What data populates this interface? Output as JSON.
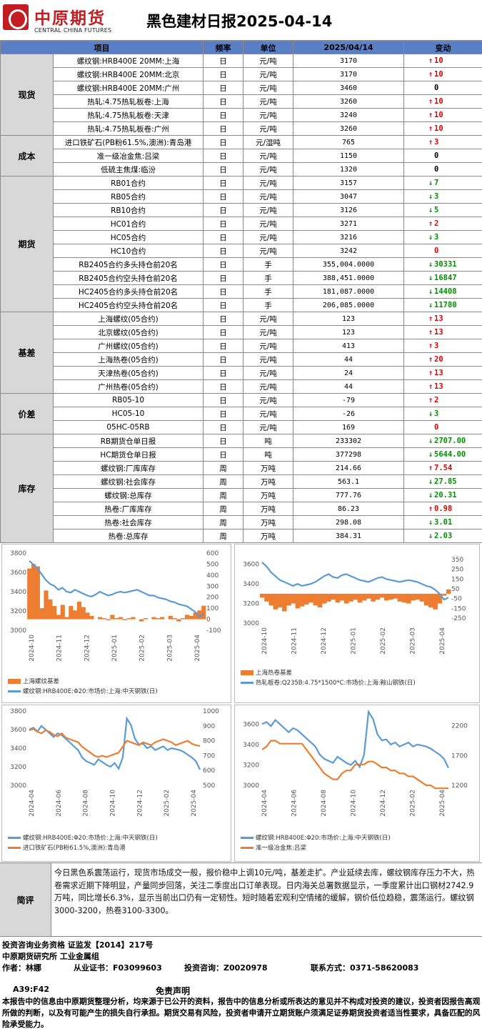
{
  "header": {
    "logo_cn": "中原期货",
    "logo_en": "CENTRAL CHINA FUTURES",
    "title": "黑色建材日报2025-04-14"
  },
  "table": {
    "columns": [
      "项目",
      "频率",
      "单位",
      "2025/04/14",
      "变动"
    ],
    "groups": [
      {
        "category": "现货",
        "rows": [
          {
            "item": "螺纹钢:HRB400E 20MM:上海",
            "freq": "日",
            "unit": "元/吨",
            "value": "3170",
            "dir": "up",
            "change": "10"
          },
          {
            "item": "螺纹钢:HRB400E 20MM:北京",
            "freq": "日",
            "unit": "元/吨",
            "value": "3170",
            "dir": "up",
            "change": "10"
          },
          {
            "item": "螺纹钢:HRB400E 20MM:广州",
            "freq": "日",
            "unit": "元/吨",
            "value": "3460",
            "dir": "flat",
            "change": "0"
          },
          {
            "item": "热轧:4.75热轧板卷:上海",
            "freq": "日",
            "unit": "元/吨",
            "value": "3260",
            "dir": "up",
            "change": "10"
          },
          {
            "item": "热轧:4.75热轧板卷:天津",
            "freq": "日",
            "unit": "元/吨",
            "value": "3240",
            "dir": "up",
            "change": "10"
          },
          {
            "item": "热轧:4.75热轧板卷:广州",
            "freq": "日",
            "unit": "元/吨",
            "value": "3260",
            "dir": "up",
            "change": "10"
          }
        ]
      },
      {
        "category": "成本",
        "rows": [
          {
            "item": "进口铁矿石(PB粉61.5%,澳洲):青岛港",
            "freq": "日",
            "unit": "元/湿吨",
            "value": "765",
            "dir": "up",
            "change": "3"
          },
          {
            "item": "准一级冶金焦:吕梁",
            "freq": "日",
            "unit": "元/吨",
            "value": "1150",
            "dir": "flat",
            "change": "0"
          },
          {
            "item": "低硫主焦煤:临汾",
            "freq": "日",
            "unit": "元/吨",
            "value": "1320",
            "dir": "flat",
            "change": "0"
          }
        ]
      },
      {
        "category": "期货",
        "rows": [
          {
            "item": "RB01合约",
            "freq": "日",
            "unit": "元/吨",
            "value": "3157",
            "dir": "down",
            "change": "7"
          },
          {
            "item": "RB05合约",
            "freq": "日",
            "unit": "元/吨",
            "value": "3047",
            "dir": "down",
            "change": "3"
          },
          {
            "item": "RB10合约",
            "freq": "日",
            "unit": "元/吨",
            "value": "3126",
            "dir": "down",
            "change": "5"
          },
          {
            "item": "HC01合约",
            "freq": "日",
            "unit": "元/吨",
            "value": "3271",
            "dir": "up",
            "change": "2"
          },
          {
            "item": "HC05合约",
            "freq": "日",
            "unit": "元/吨",
            "value": "3216",
            "dir": "down",
            "change": "3"
          },
          {
            "item": "HC10合约",
            "freq": "日",
            "unit": "元/吨",
            "value": "3242",
            "dir": "flat-red",
            "change": "0"
          },
          {
            "item": "RB2405合约多头持仓前20名",
            "freq": "日",
            "unit": "手",
            "value": "355,004.0000",
            "dir": "down",
            "change": "30331"
          },
          {
            "item": "RB2405合约空头持仓前20名",
            "freq": "日",
            "unit": "手",
            "value": "388,451.0000",
            "dir": "down",
            "change": "16847"
          },
          {
            "item": "HC2405合约多头持仓前20名",
            "freq": "日",
            "unit": "手",
            "value": "181,087.0000",
            "dir": "down",
            "change": "14408"
          },
          {
            "item": "HC2405合约空头持仓前20名",
            "freq": "日",
            "unit": "手",
            "value": "206,085.0000",
            "dir": "down",
            "change": "11780"
          }
        ]
      },
      {
        "category": "基差",
        "rows": [
          {
            "item": "上海螺纹(05合约)",
            "freq": "日",
            "unit": "元/吨",
            "value": "123",
            "dir": "up",
            "change": "13"
          },
          {
            "item": "北京螺纹(05合约)",
            "freq": "日",
            "unit": "元/吨",
            "value": "123",
            "dir": "up",
            "change": "13"
          },
          {
            "item": "广州螺纹(05合约)",
            "freq": "日",
            "unit": "元/吨",
            "value": "413",
            "dir": "up",
            "change": "3"
          },
          {
            "item": "上海热卷(05合约)",
            "freq": "日",
            "unit": "元/吨",
            "value": "44",
            "dir": "up",
            "change": "20"
          },
          {
            "item": "天津热卷(05合约)",
            "freq": "日",
            "unit": "元/吨",
            "value": "24",
            "dir": "up",
            "change": "13"
          },
          {
            "item": "广州热卷(05合约)",
            "freq": "日",
            "unit": "元/吨",
            "value": "44",
            "dir": "up",
            "change": "13"
          }
        ]
      },
      {
        "category": "价差",
        "rows": [
          {
            "item": "RB05-10",
            "freq": "日",
            "unit": "元/吨",
            "value": "-79",
            "dir": "up",
            "change": "2"
          },
          {
            "item": "HC05-10",
            "freq": "日",
            "unit": "元/吨",
            "value": "-26",
            "dir": "down",
            "change": "3"
          },
          {
            "item": "05HC-05RB",
            "freq": "日",
            "unit": "元/吨",
            "value": "169",
            "dir": "flat-red",
            "change": "0"
          }
        ]
      },
      {
        "category": "库存",
        "rows": [
          {
            "item": "RB期货仓单日报",
            "freq": "日",
            "unit": "吨",
            "value": "233302",
            "dir": "down",
            "change": "2707.00"
          },
          {
            "item": "HC期货仓单日报",
            "freq": "日",
            "unit": "吨",
            "value": "377298",
            "dir": "down",
            "change": "5644.00"
          },
          {
            "item": "螺纹钢:厂库库存",
            "freq": "周",
            "unit": "万吨",
            "value": "214.66",
            "dir": "up",
            "change": "7.54"
          },
          {
            "item": "螺纹钢:社会库存",
            "freq": "周",
            "unit": "万吨",
            "value": "563.1",
            "dir": "down",
            "change": "27.85"
          },
          {
            "item": "螺纹钢:总库存",
            "freq": "周",
            "unit": "万吨",
            "value": "777.76",
            "dir": "down",
            "change": "20.31"
          },
          {
            "item": "热卷:厂库库存",
            "freq": "周",
            "unit": "万吨",
            "value": "86.23",
            "dir": "up",
            "change": "0.98"
          },
          {
            "item": "热卷:社会库存",
            "freq": "周",
            "unit": "万吨",
            "value": "298.08",
            "dir": "down",
            "change": "3.01"
          },
          {
            "item": "热卷:总库存",
            "freq": "周",
            "unit": "万吨",
            "value": "384.31",
            "dir": "down",
            "change": "2.03"
          }
        ]
      }
    ]
  },
  "colors": {
    "up": "#e00000",
    "down": "#009000",
    "line_blue": "#5b9bd5",
    "bar_orange": "#ed7d31",
    "header_blue": "#5b7fc4"
  },
  "chart_data": [
    {
      "type": "line",
      "yleft": {
        "ticks": [
          "3800",
          "3600",
          "3400",
          "3200",
          "3000"
        ],
        "min": 3000,
        "max": 3800
      },
      "yright": {
        "ticks": [
          "600",
          "500",
          "400",
          "300",
          "200",
          "100",
          "0",
          "-100"
        ],
        "min": -100,
        "max": 600
      },
      "xticks": [
        "2024-10",
        "2024-11",
        "2024-12",
        "2025-01",
        "2025-02",
        "2025-03",
        "2025-04"
      ],
      "series": [
        {
          "name": "上海螺纹基差",
          "style": "area",
          "axis": "right",
          "values": [
            460,
            500,
            480,
            100,
            260,
            180,
            120,
            40,
            130,
            20,
            120,
            80,
            160,
            110,
            60,
            30,
            0,
            20,
            10,
            -10,
            40,
            10,
            20,
            -10,
            10,
            20,
            0,
            -20,
            10,
            0,
            20,
            10,
            20,
            0,
            30,
            10,
            -20,
            10,
            40,
            30,
            60,
            80,
            123
          ]
        },
        {
          "name": "螺纹钢:HRB400E:Φ20:市场价:上海:中天钢铁(日)",
          "style": "line",
          "axis": "left",
          "values": [
            3720,
            3680,
            3640,
            3580,
            3520,
            3480,
            3460,
            3420,
            3440,
            3400,
            3390,
            3420,
            3400,
            3380,
            3360,
            3350,
            3370,
            3400,
            3380,
            3360,
            3370,
            3390,
            3400,
            3390,
            3400,
            3410,
            3420,
            3400,
            3380,
            3360,
            3360,
            3340,
            3330,
            3320,
            3300,
            3290,
            3270,
            3260,
            3250,
            3220,
            3190,
            3140,
            3170
          ]
        }
      ]
    },
    {
      "type": "line",
      "yleft": {
        "ticks": [
          "3600",
          "3400",
          "3200",
          "3000"
        ],
        "min": 3000,
        "max": 3700
      },
      "yright": {
        "ticks": [
          "350",
          "250",
          "150",
          "50",
          "-50",
          "-150",
          "-250"
        ],
        "min": -300,
        "max": 400
      },
      "xticks": [
        "2024-10",
        "2024-11",
        "2024-12",
        "2025-01",
        "2025-02",
        "2025-03",
        "2025-04"
      ],
      "series": [
        {
          "name": "上海热卷基差",
          "style": "area",
          "axis": "right",
          "values": [
            -40,
            -80,
            -120,
            -160,
            -140,
            -180,
            -120,
            -100,
            -150,
            -130,
            -110,
            -90,
            -120,
            -140,
            -100,
            -80,
            -60,
            -90,
            -70,
            -100,
            -80,
            -60,
            -90,
            -70,
            -50,
            -80,
            -60,
            -40,
            -70,
            -60,
            -50,
            -80,
            -90,
            -100,
            -70,
            -60,
            -80,
            -120,
            -140,
            -160,
            -100,
            -20,
            44
          ]
        },
        {
          "name": "热轧板卷:Q235B:4.75*1500*C:市场价:上海:鞍山钢铁(日)",
          "style": "line",
          "axis": "left",
          "values": [
            3620,
            3580,
            3520,
            3480,
            3440,
            3420,
            3400,
            3380,
            3400,
            3380,
            3390,
            3400,
            3420,
            3450,
            3480,
            3500,
            3470,
            3460,
            3490,
            3500,
            3480,
            3460,
            3440,
            3430,
            3420,
            3440,
            3460,
            3470,
            3450,
            3440,
            3430,
            3420,
            3430,
            3440,
            3430,
            3420,
            3400,
            3380,
            3370,
            3340,
            3300,
            3240,
            3260
          ]
        }
      ]
    },
    {
      "type": "line",
      "yleft": {
        "ticks": [
          "3800",
          "3600",
          "3400",
          "3200",
          "3000"
        ],
        "min": 3000,
        "max": 3800
      },
      "yright": {
        "ticks": [
          "1000",
          "900",
          "800",
          "700",
          "600",
          "500"
        ],
        "min": 500,
        "max": 1000
      },
      "xticks": [
        "2024-04",
        "2024-06",
        "2024-08",
        "2024-10",
        "2024-12",
        "2025-02",
        "2025-04"
      ],
      "series": [
        {
          "name": "螺纹钢:HRB400E:Φ20:市场价:上海:中天钢铁(日)",
          "style": "line",
          "axis": "left",
          "values": [
            3600,
            3620,
            3580,
            3640,
            3600,
            3560,
            3520,
            3560,
            3540,
            3500,
            3460,
            3420,
            3380,
            3300,
            3260,
            3240,
            3220,
            3280,
            3250,
            3220,
            3200,
            3240,
            3180,
            3300,
            3720,
            3650,
            3500,
            3440,
            3450,
            3400,
            3420,
            3380,
            3400,
            3420,
            3380,
            3400,
            3390,
            3380,
            3360,
            3330,
            3300,
            3260,
            3170
          ]
        },
        {
          "name": "进口铁矿石(PB粉61.5%,澳洲):青岛港",
          "style": "line",
          "axis": "right",
          "values": [
            870,
            880,
            860,
            850,
            870,
            860,
            840,
            830,
            850,
            820,
            810,
            800,
            790,
            760,
            740,
            720,
            700,
            690,
            700,
            690,
            700,
            710,
            720,
            760,
            800,
            790,
            780,
            770,
            790,
            780,
            770,
            790,
            800,
            810,
            800,
            790,
            770,
            780,
            790,
            800,
            780,
            770,
            765
          ]
        }
      ]
    },
    {
      "type": "line",
      "yleft": {
        "ticks": [
          "3600",
          "3400",
          "3200",
          "3000"
        ],
        "min": 3000,
        "max": 3700
      },
      "yright": {
        "ticks": [
          "2200",
          "1700",
          "1200"
        ],
        "min": 1200,
        "max": 2400
      },
      "xticks": [
        "2024-04",
        "2024-06",
        "2024-08",
        "2024-10",
        "2024-12",
        "2025-02",
        "2025-04"
      ],
      "series": [
        {
          "name": "螺纹钢:HRB400E:Φ20:市场价:上海:中天钢铁(日)",
          "style": "line",
          "axis": "left",
          "values": [
            3600,
            3620,
            3580,
            3640,
            3600,
            3560,
            3520,
            3560,
            3540,
            3500,
            3460,
            3420,
            3380,
            3300,
            3260,
            3240,
            3220,
            3280,
            3250,
            3220,
            3200,
            3240,
            3180,
            3300,
            3720,
            3650,
            3500,
            3440,
            3450,
            3400,
            3420,
            3380,
            3400,
            3420,
            3380,
            3400,
            3390,
            3380,
            3360,
            3330,
            3300,
            3260,
            3170
          ]
        },
        {
          "name": "准一级冶金焦:吕梁",
          "style": "line",
          "axis": "right",
          "values": [
            1800,
            1850,
            1950,
            1950,
            1900,
            1900,
            1900,
            1900,
            1900,
            1900,
            1800,
            1700,
            1600,
            1500,
            1400,
            1350,
            1300,
            1300,
            1400,
            1450,
            1450,
            1550,
            1550,
            1550,
            1600,
            1600,
            1550,
            1500,
            1500,
            1450,
            1450,
            1400,
            1400,
            1350,
            1350,
            1300,
            1250,
            1200,
            1200,
            1150,
            1150,
            1150,
            1150
          ]
        }
      ]
    }
  ],
  "comment": {
    "label": "简评",
    "text": "今日黑色系震荡运行，现货市场成交一般，报价稳中上调10元/吨，基差走扩。产业延续去库，螺纹钢库存压力不大，热卷需求近期下降明显，产量同步回落，关注二季度出口订单表现。日内海关总署数据显示，一季度累计出口钢材2742.9万吨，同比增长6.3%，显示当前出口仍有一定韧性。短时随着宏观利空情绪的缓解，钢价低位趋稳，震荡运行。螺纹钢3000-3200，热卷3100-3300。"
  },
  "contact": {
    "line1": "投资咨询业务资格  证监发【2014】217号",
    "line2": "中原期货研究所  工业金属组",
    "author_label": "作者：林娜",
    "cert_label": "从业证书：F03099603",
    "advisory_label": "投资咨询：Z0020978",
    "phone_label": "联系方式：0371-58620083"
  },
  "disclaimer": {
    "code": "A39:F42",
    "title": "免责声明",
    "text": "本报告中的信息由中原期货整理分析，均来源于已公开的资料，报告中的信息分析或所表达的意见并不构成对投资的建议，投资者因报告高观所做的判断，以及有可能产生的损失自行承担。期货交易有风险，投资者申请开立期货账户须满足证券期货投资者适当性要求，具备匹配的风险承受能力。"
  }
}
